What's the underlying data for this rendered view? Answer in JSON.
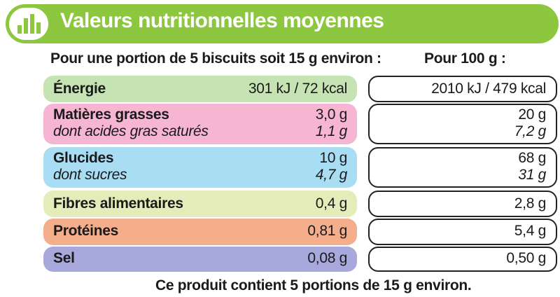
{
  "banner": {
    "title": "Valeurs nutritionnelles moyennes",
    "icon": "bar-chart-icon",
    "color": "#8dc63f"
  },
  "headers": {
    "portion": "Pour une portion de 5 biscuits soit 15 g environ :",
    "per100": "Pour 100 g :"
  },
  "rows": {
    "energie": {
      "label": "Énergie",
      "portion": "301 kJ / 72 kcal",
      "per100": "2010 kJ / 479 kcal",
      "color": "#c5e3b3"
    },
    "matieres": {
      "label": "Matières grasses",
      "portion": "3,0 g",
      "per100": "20 g",
      "sub_label": "dont acides gras saturés",
      "sub_portion": "1,1 g",
      "sub_per100": "7,2 g",
      "color": "#f5b5d3"
    },
    "glucides": {
      "label": "Glucides",
      "portion": "10 g",
      "per100": "68 g",
      "sub_label": "dont sucres",
      "sub_portion": "4,7 g",
      "sub_per100": "31 g",
      "color": "#a9ddf4"
    },
    "fibres": {
      "label": "Fibres alimentaires",
      "portion": "0,4 g",
      "per100": "2,8 g",
      "color": "#e4edb9"
    },
    "proteines": {
      "label": "Protéines",
      "portion": "0,81 g",
      "per100": "5,4 g",
      "color": "#f5ae8c"
    },
    "sel": {
      "label": "Sel",
      "portion": "0,08 g",
      "per100": "0,50 g",
      "color": "#a7a9dc"
    }
  },
  "footer": "Ce produit contient 5 portions de 15 g environ."
}
